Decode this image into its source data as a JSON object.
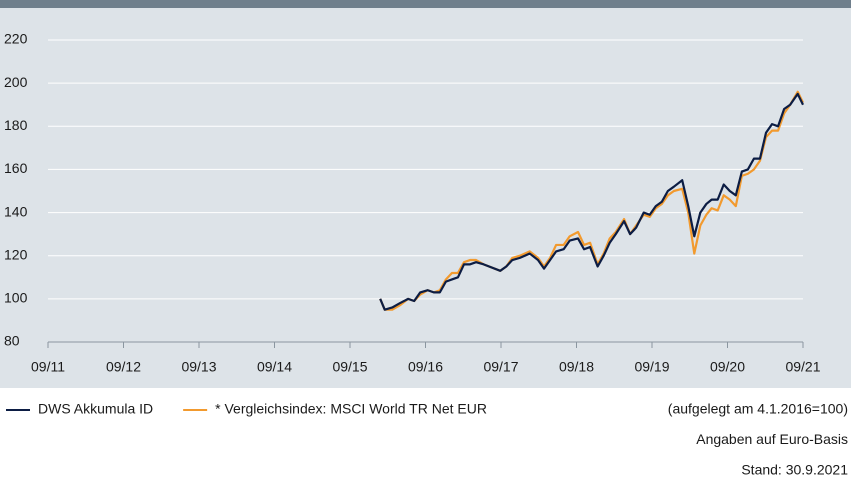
{
  "chart_data": {
    "type": "line",
    "x": [
      2016.15,
      2016.21,
      2016.31,
      2016.41,
      2016.52,
      2016.6,
      2016.68,
      2016.78,
      2016.86,
      2016.94,
      2017.02,
      2017.1,
      2017.18,
      2017.26,
      2017.34,
      2017.42,
      2017.52,
      2017.74,
      2017.82,
      2017.9,
      2018.0,
      2018.13,
      2018.24,
      2018.32,
      2018.4,
      2018.48,
      2018.58,
      2018.66,
      2018.77,
      2018.85,
      2018.93,
      2019.03,
      2019.11,
      2019.19,
      2019.27,
      2019.38,
      2019.46,
      2019.54,
      2019.64,
      2019.72,
      2019.8,
      2019.88,
      2019.96,
      2020.04,
      2020.15,
      2020.23,
      2020.31,
      2020.39,
      2020.47,
      2020.54,
      2020.62,
      2020.7,
      2020.78,
      2020.86,
      2020.94,
      2021.02,
      2021.1,
      2021.18,
      2021.26,
      2021.34,
      2021.42,
      2021.5,
      2021.58,
      2021.68,
      2021.75
    ],
    "series": [
      {
        "name": "DWS Akkumula ID",
        "color": "#0c1d44",
        "values": [
          100,
          95,
          96,
          98,
          100,
          99,
          103,
          104,
          103,
          103,
          108,
          109,
          110,
          116,
          116,
          117,
          116,
          113,
          115,
          118,
          119,
          121,
          118,
          114,
          118,
          122,
          123,
          127,
          128,
          123,
          124,
          115,
          120,
          126,
          130,
          136,
          130,
          133,
          140,
          139,
          143,
          145,
          150,
          152,
          155,
          143,
          129,
          140,
          144,
          146,
          146,
          153,
          150,
          148,
          159,
          160,
          165,
          165,
          177,
          181,
          180,
          188,
          190,
          195,
          190
        ]
      },
      {
        "name": "* Vergleichsindex: MSCI World TR Net EUR",
        "color": "#f29a2e",
        "values": [
          100,
          95,
          95,
          97,
          100,
          99,
          102,
          104,
          103,
          104,
          109,
          112,
          112,
          117,
          118,
          118,
          116,
          113,
          115,
          119,
          120,
          122,
          119,
          115,
          119,
          125,
          125,
          129,
          131,
          125,
          126,
          116,
          121,
          128,
          131,
          137,
          130,
          134,
          139,
          138,
          142,
          144,
          148,
          150,
          151,
          140,
          121,
          134,
          139,
          142,
          141,
          148,
          146,
          143,
          157,
          158,
          160,
          164,
          175,
          178,
          178,
          186,
          190,
          196,
          191
        ]
      }
    ],
    "xlim": [
      2011.75,
      2021.75
    ],
    "xticks": [
      {
        "value": 2011.75,
        "label": "09/11"
      },
      {
        "value": 2012.75,
        "label": "09/12"
      },
      {
        "value": 2013.75,
        "label": "09/13"
      },
      {
        "value": 2014.75,
        "label": "09/14"
      },
      {
        "value": 2015.75,
        "label": "09/15"
      },
      {
        "value": 2016.75,
        "label": "09/16"
      },
      {
        "value": 2017.75,
        "label": "09/17"
      },
      {
        "value": 2018.75,
        "label": "09/18"
      },
      {
        "value": 2019.75,
        "label": "09/19"
      },
      {
        "value": 2020.75,
        "label": "09/20"
      },
      {
        "value": 2021.75,
        "label": "09/21"
      }
    ],
    "ylim": [
      80,
      220
    ],
    "yticks": [
      80,
      100,
      120,
      140,
      160,
      180,
      200,
      220
    ],
    "grid": true,
    "notes": [
      "(aufgelegt am 4.1.2016=100)",
      "Angaben auf Euro-Basis",
      "Stand: 30.9.2021"
    ]
  }
}
